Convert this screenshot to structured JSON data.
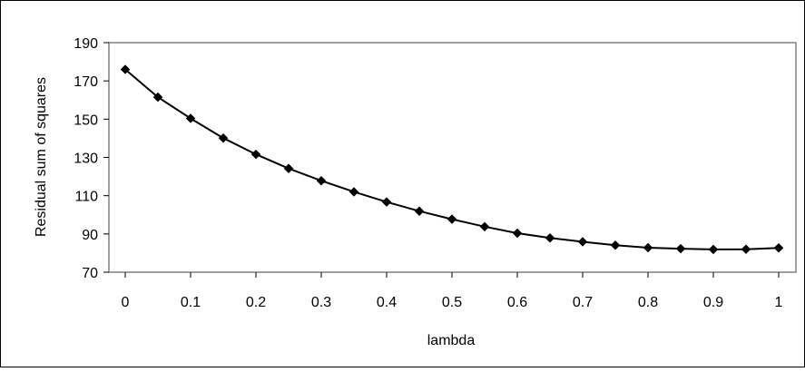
{
  "chart_data": {
    "type": "line",
    "title": "",
    "xlabel": "lambda",
    "ylabel": "Residual sum of squares",
    "xlim": [
      0,
      1
    ],
    "ylim": [
      70,
      190
    ],
    "x_ticks": [
      "0",
      "0.1",
      "0.2",
      "0.3",
      "0.4",
      "0.5",
      "0.6",
      "0.7",
      "0.8",
      "0.9",
      "1"
    ],
    "y_ticks": [
      "70",
      "90",
      "110",
      "130",
      "150",
      "170",
      "190"
    ],
    "grid": false,
    "legend": "none",
    "series": [
      {
        "color": "#000000",
        "marker": "diamond",
        "x": [
          0,
          0.05,
          0.1,
          0.15,
          0.2,
          0.25,
          0.3,
          0.35,
          0.4,
          0.45,
          0.5,
          0.55,
          0.6,
          0.65,
          0.7,
          0.75,
          0.8,
          0.85,
          0.9,
          0.95,
          1
        ],
        "y": [
          176,
          161.5,
          150.4,
          140.1,
          131.6,
          124.2,
          117.8,
          112,
          106.7,
          101.9,
          97.7,
          93.8,
          90.4,
          87.9,
          85.9,
          84.1,
          82.8,
          82.3,
          81.9,
          82,
          82.7
        ]
      }
    ]
  }
}
